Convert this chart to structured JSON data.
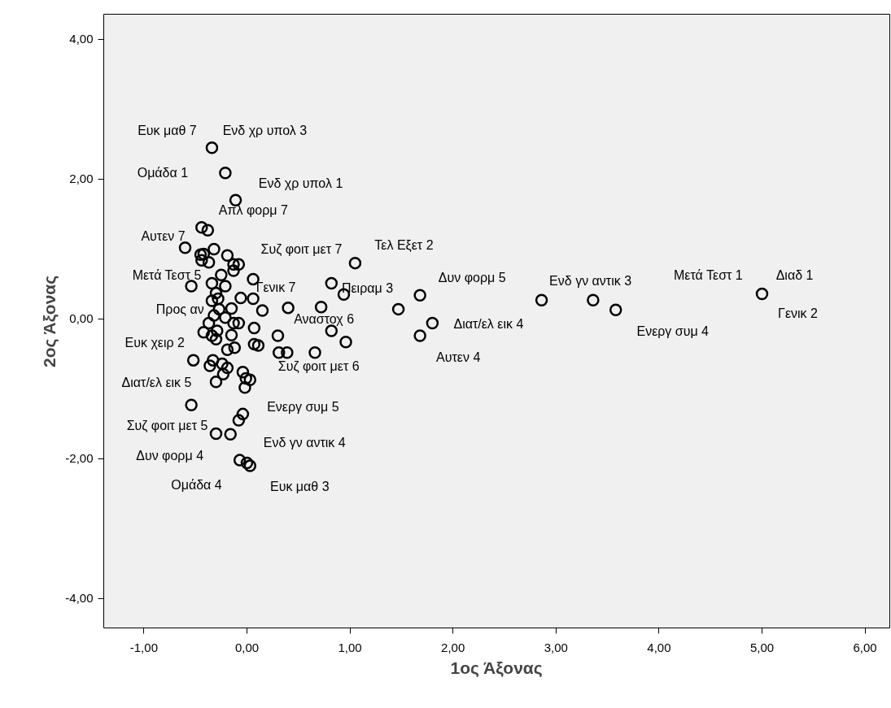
{
  "chart_data": {
    "type": "scatter",
    "xlabel": "1ος Άξονας",
    "ylabel": "2ος Άξονας",
    "marker": "circle",
    "grid": false,
    "xlim": [
      -1.39,
      6.24
    ],
    "ylim": [
      -4.42,
      4.36
    ],
    "xticks": [
      {
        "value": -1,
        "label": "-1,00"
      },
      {
        "value": 0,
        "label": "0,00"
      },
      {
        "value": 1,
        "label": "1,00"
      },
      {
        "value": 2,
        "label": "2,00"
      },
      {
        "value": 3,
        "label": "3,00"
      },
      {
        "value": 4,
        "label": "4,00"
      },
      {
        "value": 5,
        "label": "5,00"
      },
      {
        "value": 6,
        "label": "6,00"
      }
    ],
    "yticks": [
      {
        "value": -4,
        "label": "-4,00"
      },
      {
        "value": -2,
        "label": "-2,00"
      },
      {
        "value": 0,
        "label": "0,00"
      },
      {
        "value": 2,
        "label": "2,00"
      },
      {
        "value": 4,
        "label": "4,00"
      }
    ],
    "series": [
      {
        "color": "#000000",
        "x": [
          -0.34,
          -0.21,
          -0.11,
          -0.44,
          -0.38,
          -0.6,
          -0.45,
          -0.42,
          -0.32,
          -0.44,
          -0.37,
          -0.19,
          -0.13,
          -0.08,
          -0.13,
          -0.25,
          -0.34,
          -0.54,
          0.06,
          -0.21,
          -0.3,
          -0.28,
          -0.34,
          -0.06,
          0.06,
          0.82,
          0.94,
          1.05,
          -0.15,
          0.15,
          0.4,
          0.72,
          -0.27,
          -0.32,
          -0.21,
          -0.13,
          -0.08,
          -0.37,
          -0.42,
          -0.29,
          -0.34,
          -0.3,
          -0.15,
          0.07,
          0.3,
          0.82,
          0.96,
          -0.19,
          -0.12,
          0.07,
          0.11,
          0.31,
          0.39,
          0.66,
          -0.52,
          -0.33,
          -0.36,
          -0.24,
          -0.19,
          -0.23,
          -0.3,
          -0.04,
          -0.01,
          0.03,
          -0.02,
          -0.54,
          -0.04,
          -0.08,
          -0.3,
          -0.16,
          -0.07,
          0.0,
          0.03,
          1.47,
          1.68,
          1.8,
          1.68,
          2.86,
          3.36,
          3.58,
          5.0
        ],
        "values": [
          2.45,
          2.09,
          1.7,
          1.31,
          1.27,
          1.02,
          0.92,
          0.93,
          1.0,
          0.84,
          0.81,
          0.91,
          0.78,
          0.78,
          0.69,
          0.63,
          0.51,
          0.47,
          0.57,
          0.47,
          0.37,
          0.29,
          0.26,
          0.3,
          0.29,
          0.51,
          0.35,
          0.8,
          0.15,
          0.12,
          0.16,
          0.17,
          0.14,
          0.05,
          0.02,
          -0.06,
          -0.06,
          -0.06,
          -0.19,
          -0.17,
          -0.24,
          -0.29,
          -0.23,
          -0.13,
          -0.24,
          -0.17,
          -0.33,
          -0.44,
          -0.41,
          -0.36,
          -0.38,
          -0.48,
          -0.48,
          -0.48,
          -0.59,
          -0.59,
          -0.67,
          -0.64,
          -0.7,
          -0.79,
          -0.9,
          -0.76,
          -0.85,
          -0.87,
          -0.98,
          -1.23,
          -1.36,
          -1.45,
          -1.64,
          -1.65,
          -2.02,
          -2.06,
          -2.1,
          0.14,
          0.34,
          -0.06,
          -0.24,
          0.27,
          0.27,
          0.13,
          0.36
        ]
      }
    ],
    "annotations": [
      {
        "text": "Ευκ μαθ 7",
        "x": -0.34,
        "y": 2.45
      },
      {
        "text": "Ενδ χρ υπολ 3",
        "x": -0.34,
        "y": 2.45
      },
      {
        "text": "Ομάδα 1",
        "x": -0.21,
        "y": 2.09
      },
      {
        "text": "Ενδ χρ υπολ 1",
        "x": -0.11,
        "y": 1.7
      },
      {
        "text": "Απλ φορμ 7",
        "x": -0.38,
        "y": 1.27
      },
      {
        "text": "Αυτεν 7",
        "x": -0.6,
        "y": 1.02
      },
      {
        "text": "Συζ φοιτ μετ 7",
        "x": -0.19,
        "y": 0.91
      },
      {
        "text": "Τελ Εξετ 2",
        "x": 1.05,
        "y": 0.8
      },
      {
        "text": "Μετά Τεστ 5",
        "x": -0.54,
        "y": 0.47
      },
      {
        "text": "Γενικ 7",
        "x": 0.06,
        "y": 0.57
      },
      {
        "text": "Πειραμ 3",
        "x": 0.94,
        "y": 0.35
      },
      {
        "text": "Δυν φορμ 5",
        "x": 1.68,
        "y": 0.34
      },
      {
        "text": "Ενδ γν αντικ 3",
        "x": 2.86,
        "y": 0.27
      },
      {
        "text": "Μετά Τεστ 1",
        "x": 5.0,
        "y": 0.36
      },
      {
        "text": "Διαδ 1",
        "x": 5.0,
        "y": 0.36
      },
      {
        "text": "Γενικ 2",
        "x": 5.0,
        "y": 0.36
      },
      {
        "text": "Ενεργ συμ 4",
        "x": 3.58,
        "y": 0.13
      },
      {
        "text": "Διατ/ελ εικ 4",
        "x": 1.8,
        "y": -0.06
      },
      {
        "text": "Αυτεν 4",
        "x": 1.68,
        "y": -0.24
      },
      {
        "text": "Αναστοχ 6",
        "x": 0.4,
        "y": 0.16
      },
      {
        "text": "Προς αν",
        "x": -0.27,
        "y": 0.14
      },
      {
        "text": "Ευκ χειρ 2",
        "x": -0.42,
        "y": -0.19
      },
      {
        "text": "Συζ φοιτ μετ 6",
        "x": 0.31,
        "y": -0.48
      },
      {
        "text": "Διατ/ελ εικ 5",
        "x": -0.3,
        "y": -0.9
      },
      {
        "text": "Ενεργ συμ 5",
        "x": -0.04,
        "y": -1.36
      },
      {
        "text": "Συζ φοιτ μετ 5",
        "x": -0.3,
        "y": -1.64
      },
      {
        "text": "Ενδ γν αντικ 4",
        "x": -0.16,
        "y": -1.65
      },
      {
        "text": "Δυν φορμ 4",
        "x": -0.07,
        "y": -2.02
      },
      {
        "text": "Ομάδα 4",
        "x": 0.0,
        "y": -2.06
      },
      {
        "text": "Ευκ μαθ 3",
        "x": 0.03,
        "y": -2.1
      }
    ]
  }
}
